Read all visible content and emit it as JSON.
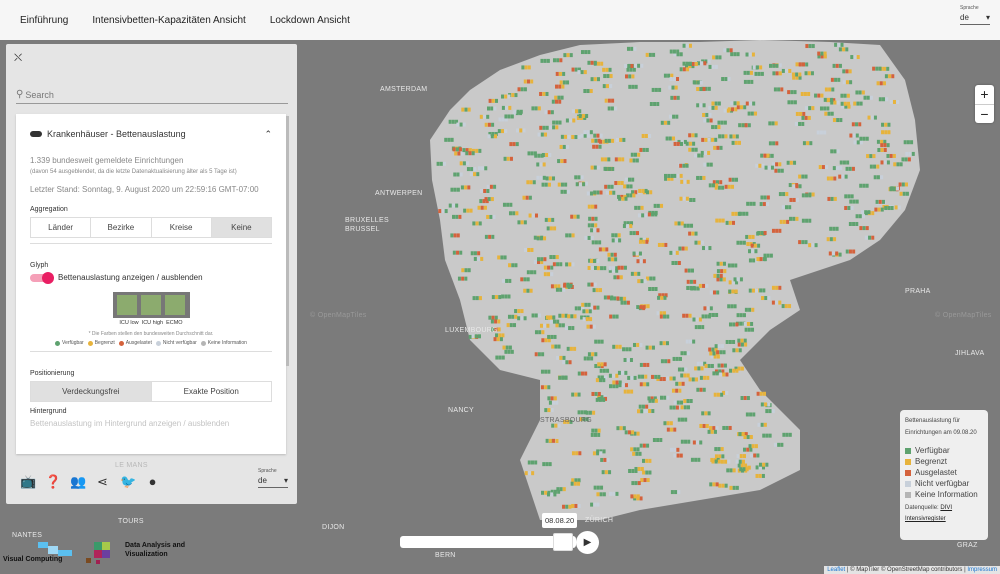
{
  "nav": {
    "items": [
      "Einführung",
      "Intensivbetten-Kapazitäten Ansicht",
      "Lockdown Ansicht"
    ],
    "lang_label": "Sprache",
    "lang_value": "de"
  },
  "map": {
    "cities": [
      "AMSTERDAM",
      "ANTWERPEN",
      "BRUXELLES",
      "BRUSSEL",
      "LUXEMBOURG",
      "PRAHA",
      "STRASBOURG",
      "ZÜRICH",
      "BERN",
      "DIJON",
      "TOURS",
      "NANTES",
      "LE MANS",
      "GRAZ",
      "JIHLAVA",
      "NANCY"
    ],
    "watermark": "© OpenMapTiles",
    "zoom_in": "+",
    "zoom_out": "−",
    "colors": {
      "available": "#5ea26f",
      "limited": "#e7b33c",
      "full": "#d4623c",
      "na": "#c8d0da",
      "noinfo": "#b5b5b5",
      "land": "#c9c9c9",
      "outside": "#7b7b7b"
    }
  },
  "panel": {
    "search_placeholder": "Search",
    "layer_title": "Krankenhäuser - Bettenauslastung",
    "count_text": "1.339 bundesweit gemeldete Einrichtungen",
    "hidden_text": "(davon 54 ausgeblendet, da die letzte Datenaktualisierung älter als 5 Tage ist)",
    "last_update": "Letzter Stand: Sonntag, 9. August 2020 um 22:59:16 GMT-07:00",
    "aggregation_label": "Aggregation",
    "aggregation_options": [
      "Länder",
      "Bezirke",
      "Kreise",
      "Keine"
    ],
    "aggregation_selected": "Keine",
    "glyph_label": "Glyph",
    "glyph_toggle": "Bettenauslastung anzeigen / ausblenden",
    "glyph_toggle_on": true,
    "glyph_cells": [
      "ICU low",
      "ICU high",
      "ECMO"
    ],
    "glyph_note": "* Die Farben stellen den bundesweiten Durchschnitt dar.",
    "glyph_legend": [
      "Verfügbar",
      "Begrenzt",
      "Ausgelastet",
      "Nicht verfügbar",
      "Keine Information"
    ],
    "positioning_label": "Positionierung",
    "positioning_options": [
      "Verdeckungsfrei",
      "Exakte Position"
    ],
    "positioning_selected": "Verdeckungsfrei",
    "background_label": "Hintergrund",
    "background_toggle": "Bettenauslastung im Hintergrund anzeigen / ausblenden",
    "lang_label": "Sprache",
    "lang_value": "de",
    "icons": [
      "tv-icon",
      "help-icon",
      "people-icon",
      "share-icon",
      "twitter-icon",
      "github-icon"
    ]
  },
  "logos": {
    "vc": "Visual Computing",
    "dav": "Data Analysis and Visualization"
  },
  "timeline": {
    "date": "08.08.20"
  },
  "legend": {
    "title": "Bettenauslastung für Einrichtungen am 09.08.20",
    "items": [
      "Verfügbar",
      "Begrenzt",
      "Ausgelastet",
      "Nicht verfügbar",
      "Keine Information"
    ],
    "source_label": "Datenquelle:",
    "source_link": "DIVI",
    "register_link": "Intensivregister"
  },
  "attribution": {
    "leaflet": "Leaflet",
    "text": "| © MapTiler © OpenStreetMap contributors |",
    "impressum": "Impressum"
  }
}
